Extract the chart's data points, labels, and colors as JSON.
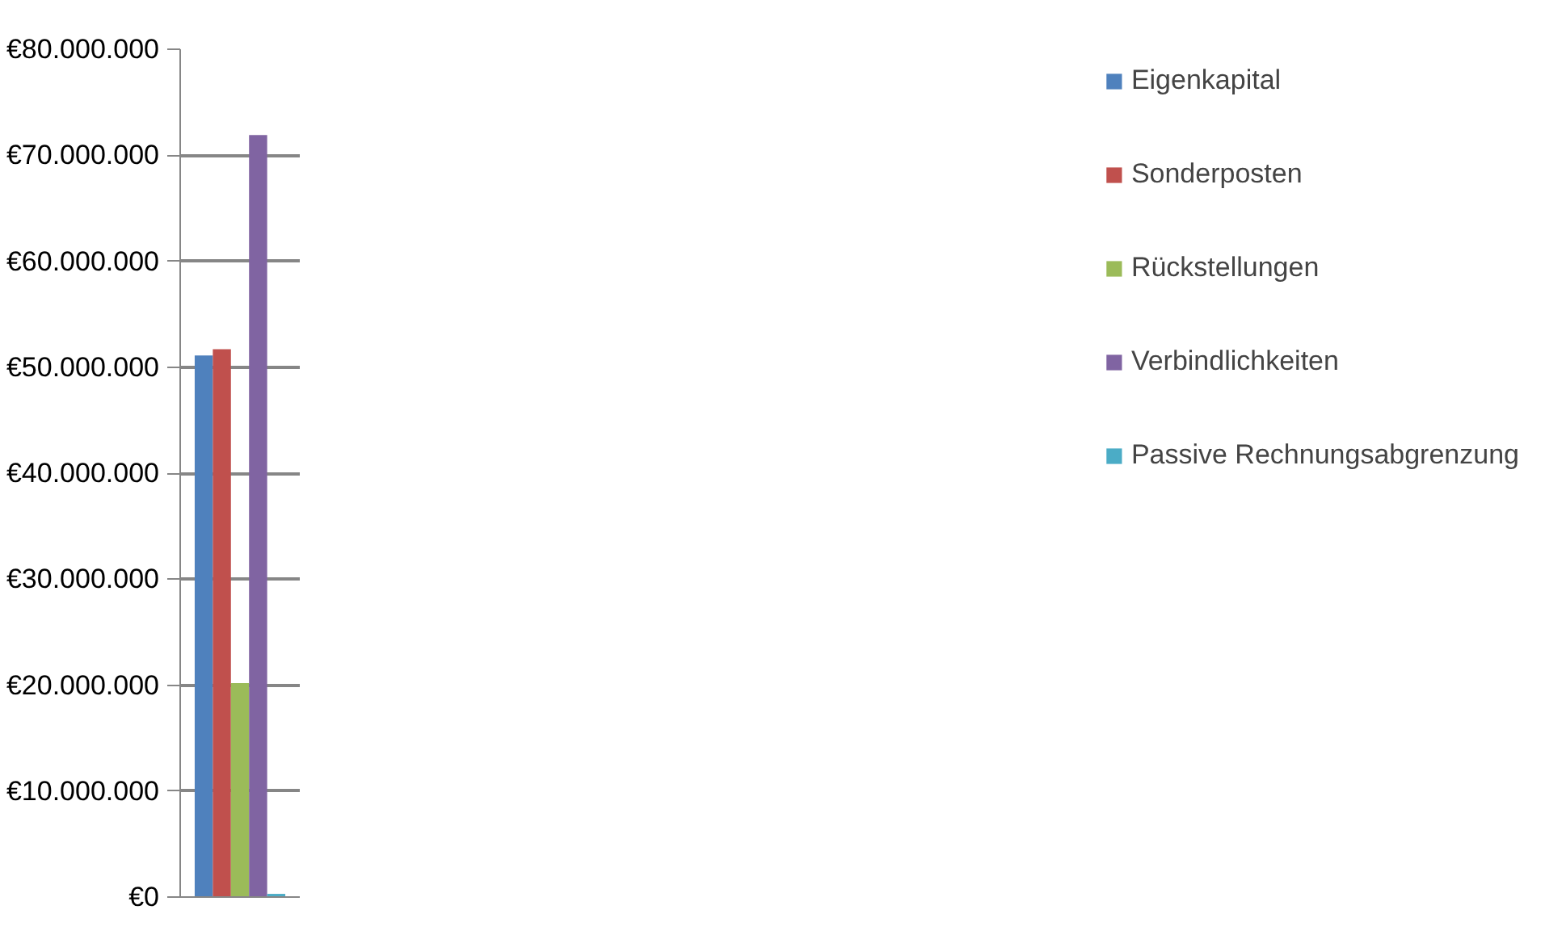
{
  "chart_data": {
    "type": "bar",
    "categories": [
      null
    ],
    "series": [
      {
        "name": "Eigenkapital",
        "color": "#4f81bd",
        "values": [
          51100000
        ]
      },
      {
        "name": "Sonderposten",
        "color": "#c0504d",
        "values": [
          51700000
        ]
      },
      {
        "name": "Rückstellungen",
        "color": "#9bbb59",
        "values": [
          20200000
        ]
      },
      {
        "name": "Verbindlichkeiten",
        "color": "#8064a2",
        "values": [
          71900000
        ]
      },
      {
        "name": "Passive Rechnungsabgrenzung",
        "color": "#4bacc6",
        "values": [
          300000
        ]
      }
    ],
    "ylim": [
      0,
      80000000
    ],
    "yticks": [
      {
        "value": 0,
        "label": "€0"
      },
      {
        "value": 10000000,
        "label": "€10.000.000"
      },
      {
        "value": 20000000,
        "label": "€20.000.000"
      },
      {
        "value": 30000000,
        "label": "€30.000.000"
      },
      {
        "value": 40000000,
        "label": "€40.000.000"
      },
      {
        "value": 50000000,
        "label": "€50.000.000"
      },
      {
        "value": 60000000,
        "label": "€60.000.000"
      },
      {
        "value": 70000000,
        "label": "€70.000.000"
      },
      {
        "value": 80000000,
        "label": "€80.000.000"
      }
    ],
    "grid": "y",
    "legend": "right",
    "tick_labels": "y"
  }
}
